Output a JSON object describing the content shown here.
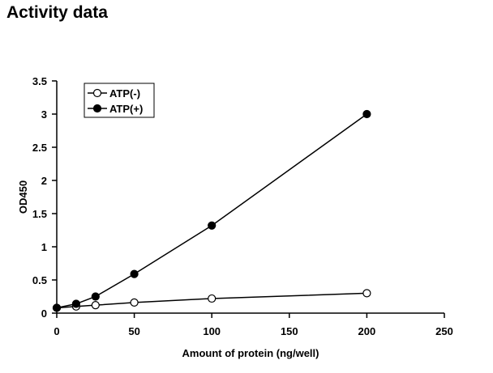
{
  "page": {
    "title": "Activity data"
  },
  "chart_data": {
    "type": "line",
    "title": "",
    "xlabel": "Amount of protein (ng/well)",
    "ylabel": "OD450",
    "xlim": [
      0,
      250
    ],
    "ylim": [
      0,
      3.5
    ],
    "x_ticks": [
      0,
      50,
      100,
      150,
      200,
      250
    ],
    "y_ticks": [
      0,
      0.5,
      1,
      1.5,
      2,
      2.5,
      3,
      3.5
    ],
    "x_tick_labels": [
      "0",
      "50",
      "100",
      "150",
      "200",
      "250"
    ],
    "y_tick_labels": [
      "0",
      "0.5",
      "1",
      "1.5",
      "2",
      "2.5",
      "3",
      "3.5"
    ],
    "grid": false,
    "legend_position": "top-left",
    "series": [
      {
        "name": "ATP(-)",
        "marker": "open-circle",
        "color": "#000000",
        "x": [
          0,
          12.5,
          25,
          50,
          100,
          200
        ],
        "y": [
          0.08,
          0.1,
          0.12,
          0.16,
          0.22,
          0.3
        ]
      },
      {
        "name": "ATP(+)",
        "marker": "filled-circle",
        "color": "#000000",
        "x": [
          0,
          12.5,
          25,
          50,
          100,
          200
        ],
        "y": [
          0.08,
          0.14,
          0.25,
          0.59,
          1.32,
          3.0
        ]
      }
    ]
  }
}
